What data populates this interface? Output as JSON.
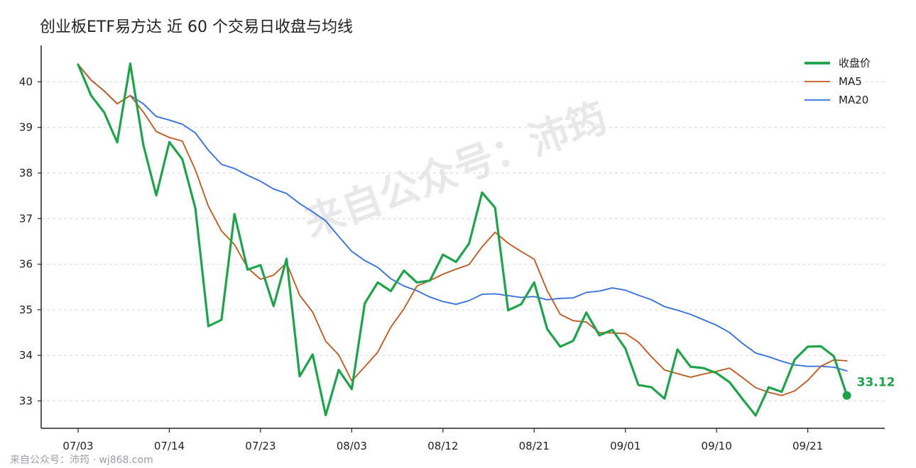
{
  "title": "创业板ETF易方达 近 60 个交易日收盘与均线",
  "footer": "来自公众号：沛筠 · wj868.com",
  "watermark": "来自公众号：沛筠",
  "chart_data": {
    "type": "line",
    "x_ticks": [
      "07/03",
      "07/14",
      "07/23",
      "08/03",
      "08/12",
      "08/21",
      "09/01",
      "09/10",
      "09/21"
    ],
    "x_tick_index": [
      0,
      7,
      14,
      21,
      28,
      35,
      42,
      49,
      56
    ],
    "ylim": [
      32.4,
      40.8
    ],
    "y_ticks": [
      33,
      34,
      35,
      36,
      37,
      38,
      39,
      40
    ],
    "grid": "horizontal dashed",
    "legend_position": "top-right",
    "last_value_label": "33.12",
    "series": [
      {
        "name": "收盘价",
        "color": "#1ea34a",
        "values": [
          40.38,
          39.7,
          39.33,
          38.67,
          40.4,
          38.62,
          37.51,
          38.68,
          38.3,
          37.23,
          34.64,
          34.78,
          37.1,
          35.88,
          35.98,
          35.08,
          36.12,
          33.54,
          34.02,
          32.69,
          33.68,
          33.26,
          35.14,
          35.6,
          35.41,
          35.86,
          35.6,
          35.64,
          36.21,
          36.05,
          36.45,
          37.57,
          37.24,
          34.99,
          35.12,
          35.6,
          34.58,
          34.19,
          34.32,
          34.94,
          34.44,
          34.56,
          34.15,
          33.35,
          33.3,
          33.05,
          34.13,
          33.75,
          33.72,
          33.61,
          33.41,
          33.04,
          32.68,
          33.3,
          33.2,
          33.91,
          34.19,
          34.2,
          33.98,
          33.12
        ]
      },
      {
        "name": "MA5",
        "color": "#c0561a",
        "values": [
          40.38,
          40.04,
          39.8,
          39.52,
          39.7,
          39.34,
          38.91,
          38.78,
          38.7,
          38.07,
          37.27,
          36.73,
          36.43,
          35.92,
          35.67,
          35.76,
          36.03,
          35.32,
          34.95,
          34.31,
          34.01,
          33.44,
          33.75,
          34.07,
          34.62,
          35.02,
          35.52,
          35.64,
          35.78,
          35.89,
          35.99,
          36.38,
          36.7,
          36.46,
          36.28,
          36.11,
          35.42,
          34.9,
          34.76,
          34.73,
          34.5,
          34.49,
          34.48,
          34.29,
          33.97,
          33.68,
          33.6,
          33.52,
          33.59,
          33.65,
          33.72,
          33.51,
          33.29,
          33.19,
          33.12,
          33.22,
          33.45,
          33.76,
          33.9,
          33.88
        ]
      },
      {
        "name": "MA20",
        "color": "#2f6ee0",
        "values": [
          40.38,
          40.04,
          39.8,
          39.52,
          39.7,
          39.52,
          39.24,
          39.16,
          39.07,
          38.88,
          38.5,
          38.19,
          38.1,
          37.95,
          37.82,
          37.65,
          37.55,
          37.33,
          37.15,
          36.95,
          36.61,
          36.28,
          36.08,
          35.93,
          35.68,
          35.52,
          35.42,
          35.28,
          35.18,
          35.12,
          35.2,
          35.34,
          35.35,
          35.31,
          35.27,
          35.29,
          35.22,
          35.25,
          35.26,
          35.38,
          35.41,
          35.48,
          35.43,
          35.32,
          35.22,
          35.07,
          34.99,
          34.9,
          34.78,
          34.66,
          34.5,
          34.26,
          34.05,
          33.97,
          33.87,
          33.79,
          33.76,
          33.76,
          33.74,
          33.66
        ]
      }
    ]
  }
}
